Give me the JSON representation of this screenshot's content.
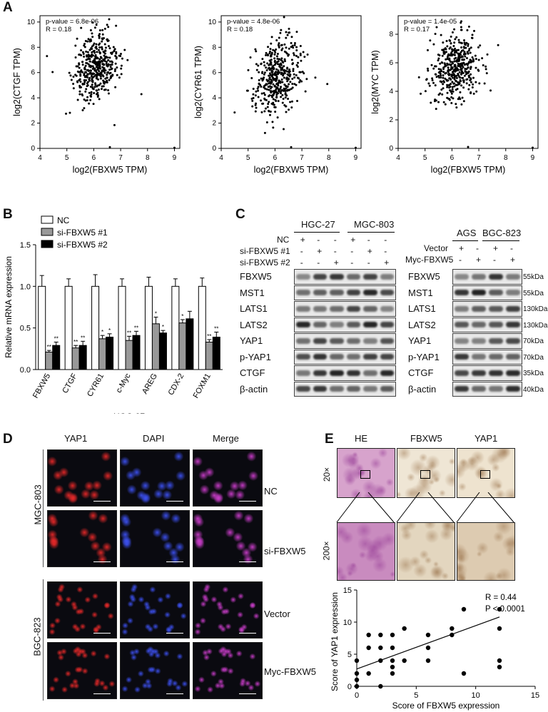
{
  "panels": {
    "a": "A",
    "b": "B",
    "c": "C",
    "d": "D",
    "e": "E"
  },
  "panelA": {
    "plots": [
      {
        "ylabel": "log2(CTGF TPM)",
        "xlabel": "log2(FBXW5 TPM)",
        "pvalue": "p-value = 6.8e-06",
        "r": "R = 0.18",
        "xticks": [
          "4",
          "5",
          "6",
          "7",
          "8",
          "9"
        ],
        "yticks": [
          "0",
          "2",
          "4",
          "6",
          "8",
          "10"
        ],
        "xlim": [
          4,
          9.2
        ],
        "ylim": [
          0,
          10.5
        ],
        "center": [
          6.1,
          6.5
        ],
        "spread": [
          0.45,
          1.4
        ],
        "seed": 11
      },
      {
        "ylabel": "log2(CYR61 TPM)",
        "xlabel": "log2(FBXW5 TPM)",
        "pvalue": "p-value = 4.8e-06",
        "r": "R = 0.18",
        "xticks": [
          "4",
          "5",
          "6",
          "7",
          "8",
          "9"
        ],
        "yticks": [
          "0",
          "2",
          "4",
          "6",
          "8",
          "10"
        ],
        "xlim": [
          4,
          9.2
        ],
        "ylim": [
          0,
          10.5
        ],
        "center": [
          6.1,
          5.8
        ],
        "spread": [
          0.45,
          1.6
        ],
        "seed": 23
      },
      {
        "ylabel": "log2(MYC TPM)",
        "xlabel": "log2(FBXW5 TPM)",
        "pvalue": "p-value = 1.4e-05",
        "r": "R = 0.17",
        "xticks": [
          "4",
          "5",
          "6",
          "7",
          "8",
          "9"
        ],
        "yticks": [
          "0",
          "2",
          "4",
          "6",
          "8"
        ],
        "xlim": [
          4,
          9.2
        ],
        "ylim": [
          0,
          9.3
        ],
        "center": [
          6.1,
          5.6
        ],
        "spread": [
          0.45,
          1.2
        ],
        "seed": 37
      }
    ]
  },
  "chart_data": {
    "type": "bar",
    "title": "",
    "xlabel": "HGC-27",
    "ylabel": "Relative mRNA expression",
    "ylim": [
      0,
      1.5
    ],
    "yticks": [
      "0.0",
      "0.5",
      "1.0",
      "1.5"
    ],
    "categories": [
      "FBXW5",
      "CTGF",
      "CYR61",
      "c-Myc",
      "AREG",
      "CDX-2",
      "FOXM1"
    ],
    "series": [
      {
        "name": "NC",
        "values": [
          1.0,
          1.0,
          1.0,
          1.0,
          1.0,
          1.0,
          1.0
        ],
        "err": [
          0.13,
          0.09,
          0.14,
          0.09,
          0.11,
          0.09,
          0.1
        ],
        "color": "#ffffff",
        "stars": [
          "",
          "",
          "",
          "",
          "",
          "",
          ""
        ]
      },
      {
        "name": "si-FBXW5 #1",
        "values": [
          0.21,
          0.26,
          0.37,
          0.35,
          0.55,
          0.56,
          0.33
        ],
        "err": [
          0.02,
          0.03,
          0.04,
          0.05,
          0.08,
          0.04,
          0.03
        ],
        "color": "#999999",
        "stars": [
          "**",
          "**",
          "*",
          "**",
          "*",
          "*",
          "**"
        ]
      },
      {
        "name": "si-FBXW5 #2",
        "values": [
          0.29,
          0.29,
          0.39,
          0.41,
          0.44,
          0.61,
          0.39
        ],
        "err": [
          0.04,
          0.05,
          0.04,
          0.05,
          0.03,
          0.09,
          0.06
        ],
        "color": "#000000",
        "stars": [
          "**",
          "**",
          "*",
          "**",
          "*",
          "",
          "**"
        ]
      }
    ],
    "legend": "top-left"
  },
  "panelC": {
    "left": {
      "cells": [
        "HGC-27",
        "MGC-803"
      ],
      "rowlabels": [
        "NC",
        "si-FBXW5 #1",
        "si-FBXW5 #2"
      ],
      "signs": [
        [
          "+",
          "-",
          "-",
          "+",
          "-",
          "-"
        ],
        [
          "-",
          "+",
          "-",
          "-",
          "+",
          "-"
        ],
        [
          "-",
          "-",
          "+",
          "-",
          "-",
          "+"
        ]
      ],
      "proteins": [
        "FBXW5",
        "MST1",
        "LATS1",
        "LATS2",
        "YAP1",
        "p-YAP1",
        "CTGF",
        "β-actin"
      ]
    },
    "right": {
      "cells": [
        "AGS",
        "BGC-823"
      ],
      "rowlabels": [
        "Vector",
        "Myc-FBXW5"
      ],
      "signs": [
        [
          "+",
          "-",
          "+",
          "-"
        ],
        [
          "-",
          "+",
          "-",
          "+"
        ]
      ],
      "proteins": [
        "FBXW5",
        "MST1",
        "LATS1",
        "LATS2",
        "YAP1",
        "p-YAP1",
        "CTGF",
        "β-actin"
      ],
      "kda": [
        "55kDa",
        "55kDa",
        "130kDa",
        "130kDa",
        "70kDa",
        "70kDa",
        "35kDa",
        "40kDa"
      ]
    }
  },
  "panelD": {
    "columns": [
      "YAP1",
      "DAPI",
      "Merge"
    ],
    "groups": [
      "MGC-803",
      "BGC-823"
    ],
    "rows": [
      "NC",
      "si-FBXW5",
      "Vector",
      "Myc-FBXW5"
    ]
  },
  "panelE": {
    "columns": [
      "HE",
      "FBXW5",
      "YAP1"
    ],
    "mags": [
      "20×",
      "200×"
    ],
    "scatter": {
      "xlabel": "Score of FBXW5 expression",
      "ylabel": "Score of YAP1 expression",
      "r": "R = 0.44",
      "p": "P < 0.0001",
      "xticks": [
        "0",
        "5",
        "10",
        "15"
      ],
      "yticks": [
        "0",
        "5",
        "10",
        "15"
      ],
      "xlim": [
        0,
        15
      ],
      "ylim": [
        0,
        15
      ],
      "points": [
        [
          0,
          0
        ],
        [
          0,
          1
        ],
        [
          0,
          2
        ],
        [
          0,
          4
        ],
        [
          1,
          2
        ],
        [
          1,
          6
        ],
        [
          1,
          8
        ],
        [
          2,
          0
        ],
        [
          2,
          4
        ],
        [
          2,
          6
        ],
        [
          2,
          8
        ],
        [
          3,
          2
        ],
        [
          3,
          3
        ],
        [
          3,
          4
        ],
        [
          3,
          6
        ],
        [
          3,
          8
        ],
        [
          4,
          4
        ],
        [
          4,
          9
        ],
        [
          6,
          4
        ],
        [
          6,
          6
        ],
        [
          6,
          8
        ],
        [
          8,
          8
        ],
        [
          8,
          9
        ],
        [
          9,
          2
        ],
        [
          9,
          12
        ],
        [
          12,
          3
        ],
        [
          12,
          4
        ],
        [
          12,
          9
        ],
        [
          12,
          12
        ]
      ],
      "fit": [
        [
          0,
          2.7
        ],
        [
          12,
          10.8
        ]
      ]
    }
  }
}
